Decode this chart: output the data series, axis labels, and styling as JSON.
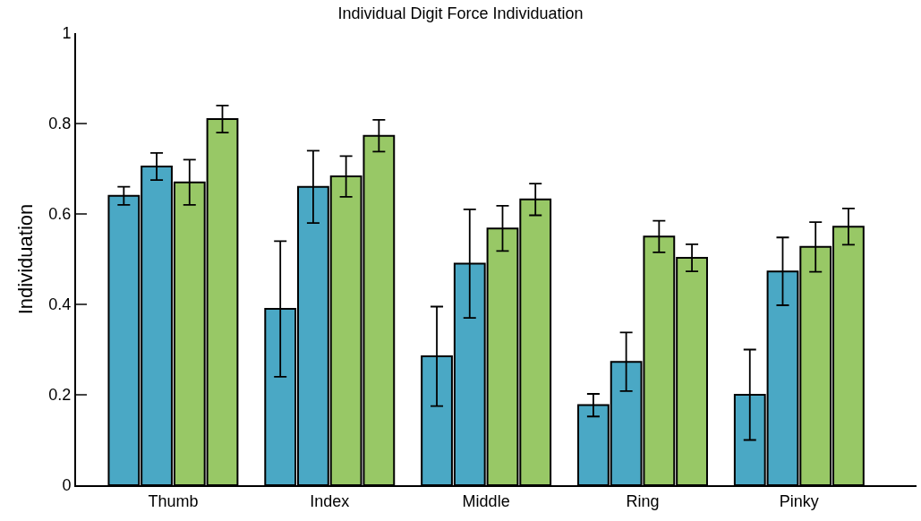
{
  "chart_data": {
    "type": "bar",
    "title": "Individual Digit Force Individuation",
    "ylabel": "Individuation",
    "categories": [
      "Thumb",
      "Index",
      "Middle",
      "Ring",
      "Pinky"
    ],
    "series": [
      {
        "color": "#4aa8c5",
        "values": [
          0.64,
          0.39,
          0.285,
          0.177,
          0.2
        ],
        "errors": [
          0.02,
          0.15,
          0.11,
          0.025,
          0.1
        ]
      },
      {
        "color": "#4aa8c5",
        "values": [
          0.705,
          0.66,
          0.49,
          0.273,
          0.473
        ],
        "errors": [
          0.03,
          0.08,
          0.12,
          0.065,
          0.075
        ]
      },
      {
        "color": "#98c866",
        "values": [
          0.67,
          0.683,
          0.568,
          0.55,
          0.527
        ],
        "errors": [
          0.05,
          0.045,
          0.05,
          0.035,
          0.055
        ]
      },
      {
        "color": "#98c866",
        "values": [
          0.81,
          0.773,
          0.632,
          0.503,
          0.572
        ],
        "errors": [
          0.03,
          0.035,
          0.035,
          0.03,
          0.04
        ]
      }
    ],
    "ylim": [
      0,
      1
    ],
    "yticks": [
      0,
      0.2,
      0.4,
      0.6,
      0.8,
      1
    ]
  }
}
